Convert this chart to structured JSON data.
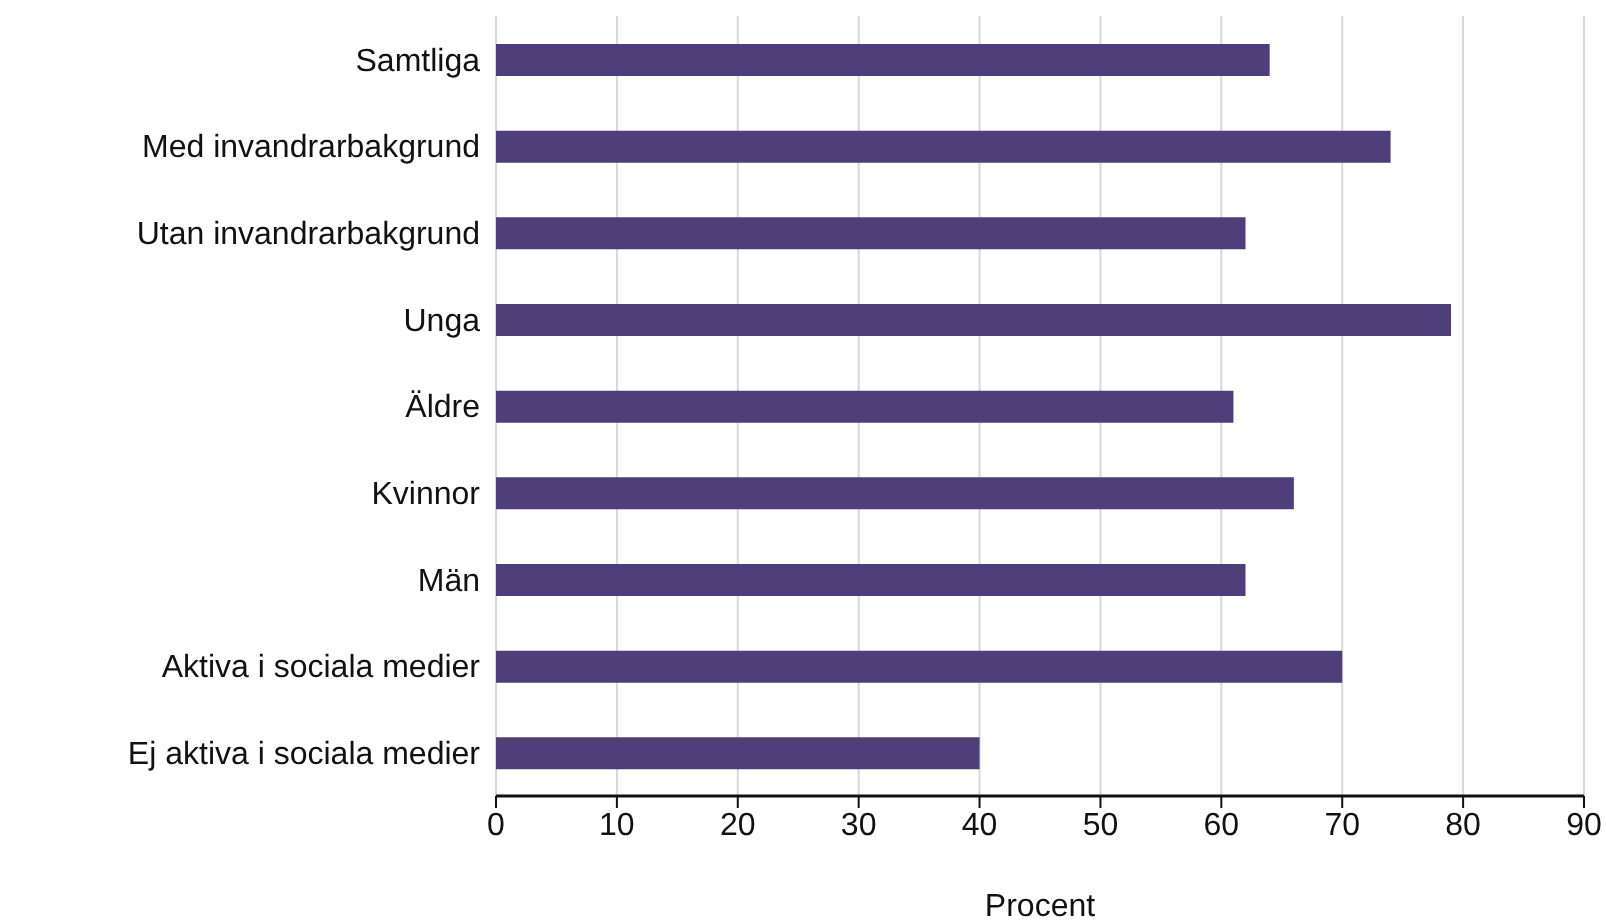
{
  "chart_data": {
    "type": "bar",
    "orientation": "horizontal",
    "xlabel": "Procent",
    "categories": [
      "Samtliga",
      "Med invandrarbakgrund",
      "Utan invandrarbakgrund",
      "Unga",
      "Äldre",
      "Kvinnor",
      "Män",
      "Aktiva i sociala medier",
      "Ej aktiva i sociala medier"
    ],
    "values": [
      64,
      74,
      62,
      79,
      61,
      66,
      62,
      70,
      40
    ],
    "color": "#4e3f7a",
    "xlim": [
      0,
      90
    ],
    "xticks": [
      0,
      10,
      20,
      30,
      40,
      50,
      60,
      70,
      80,
      90
    ],
    "grid": "x"
  }
}
